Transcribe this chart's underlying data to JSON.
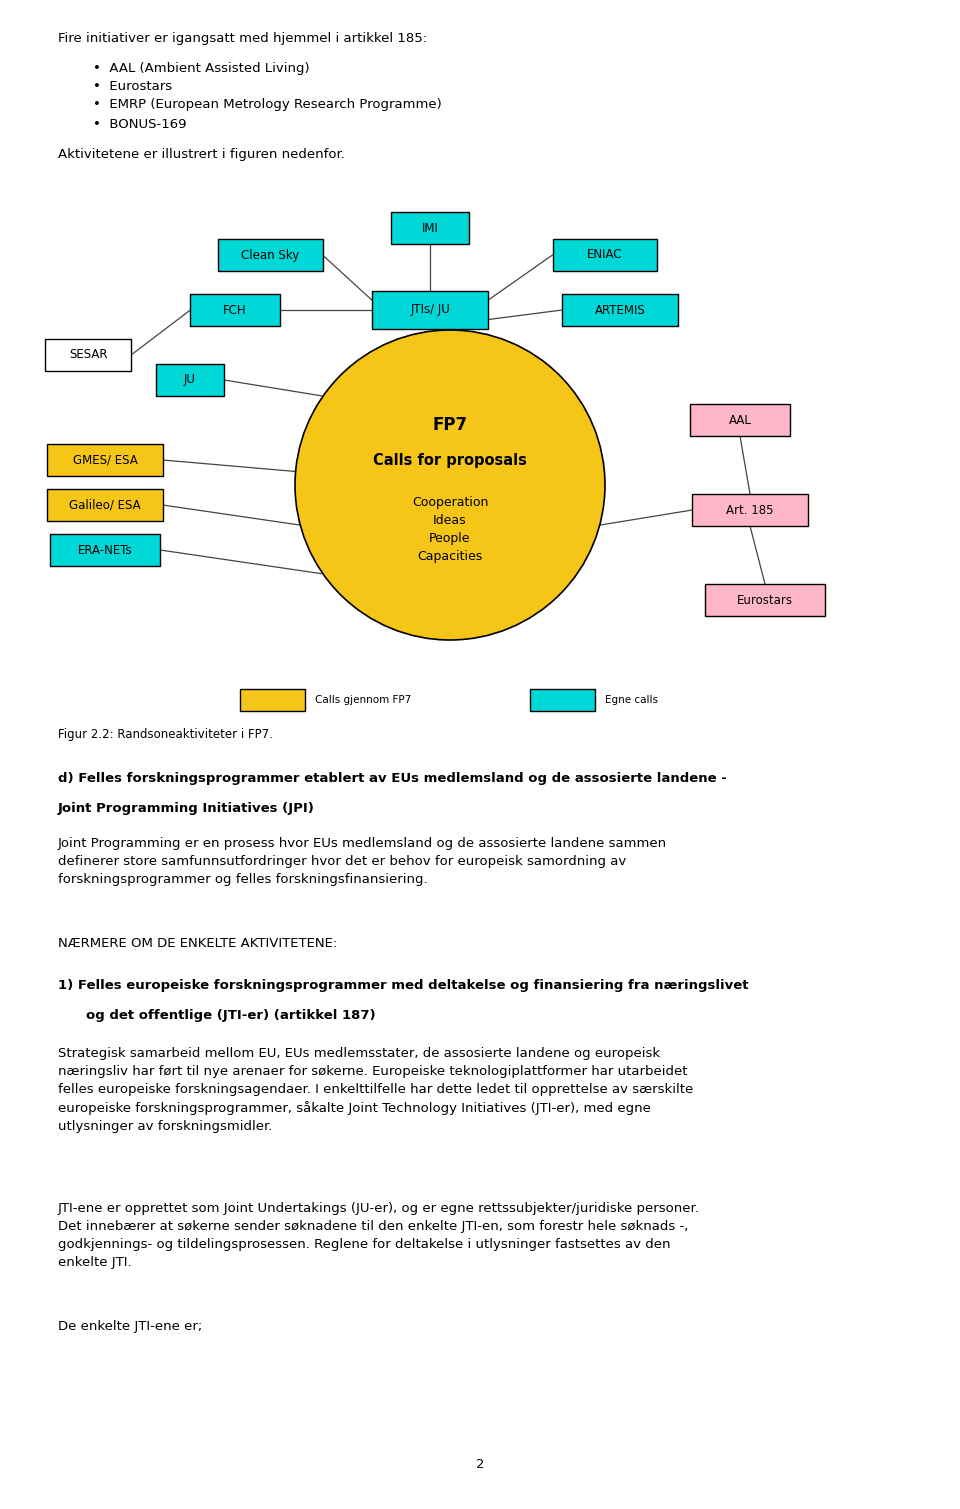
{
  "bg_color": "#ffffff",
  "page_width": 9.6,
  "page_height": 15.09,
  "intro_text": "Fire initiativer er igangsatt med hjemmel i artikkel 185:",
  "bullets": [
    "AAL (Ambient Assisted Living)",
    "Eurostars",
    "EMRP (European Metrology Research Programme)",
    "BONUS-169"
  ],
  "aktivitet_text": "Aktivitetene er illustrert i figuren nedenfor.",
  "cyan_color": "#00d8d8",
  "yellow_color": "#f5c518",
  "pink_color": "#ffb6c8",
  "white_color": "#ffffff",
  "figur_text": "Figur 2.2: Randsoneaktiviteter i FP7.",
  "naermere_header": "NÆRMERE OM DE ENKELTE AKTIVITETENE:",
  "de_enkelte_text": "De enkelte JTI-ene er;",
  "page_number": "2"
}
